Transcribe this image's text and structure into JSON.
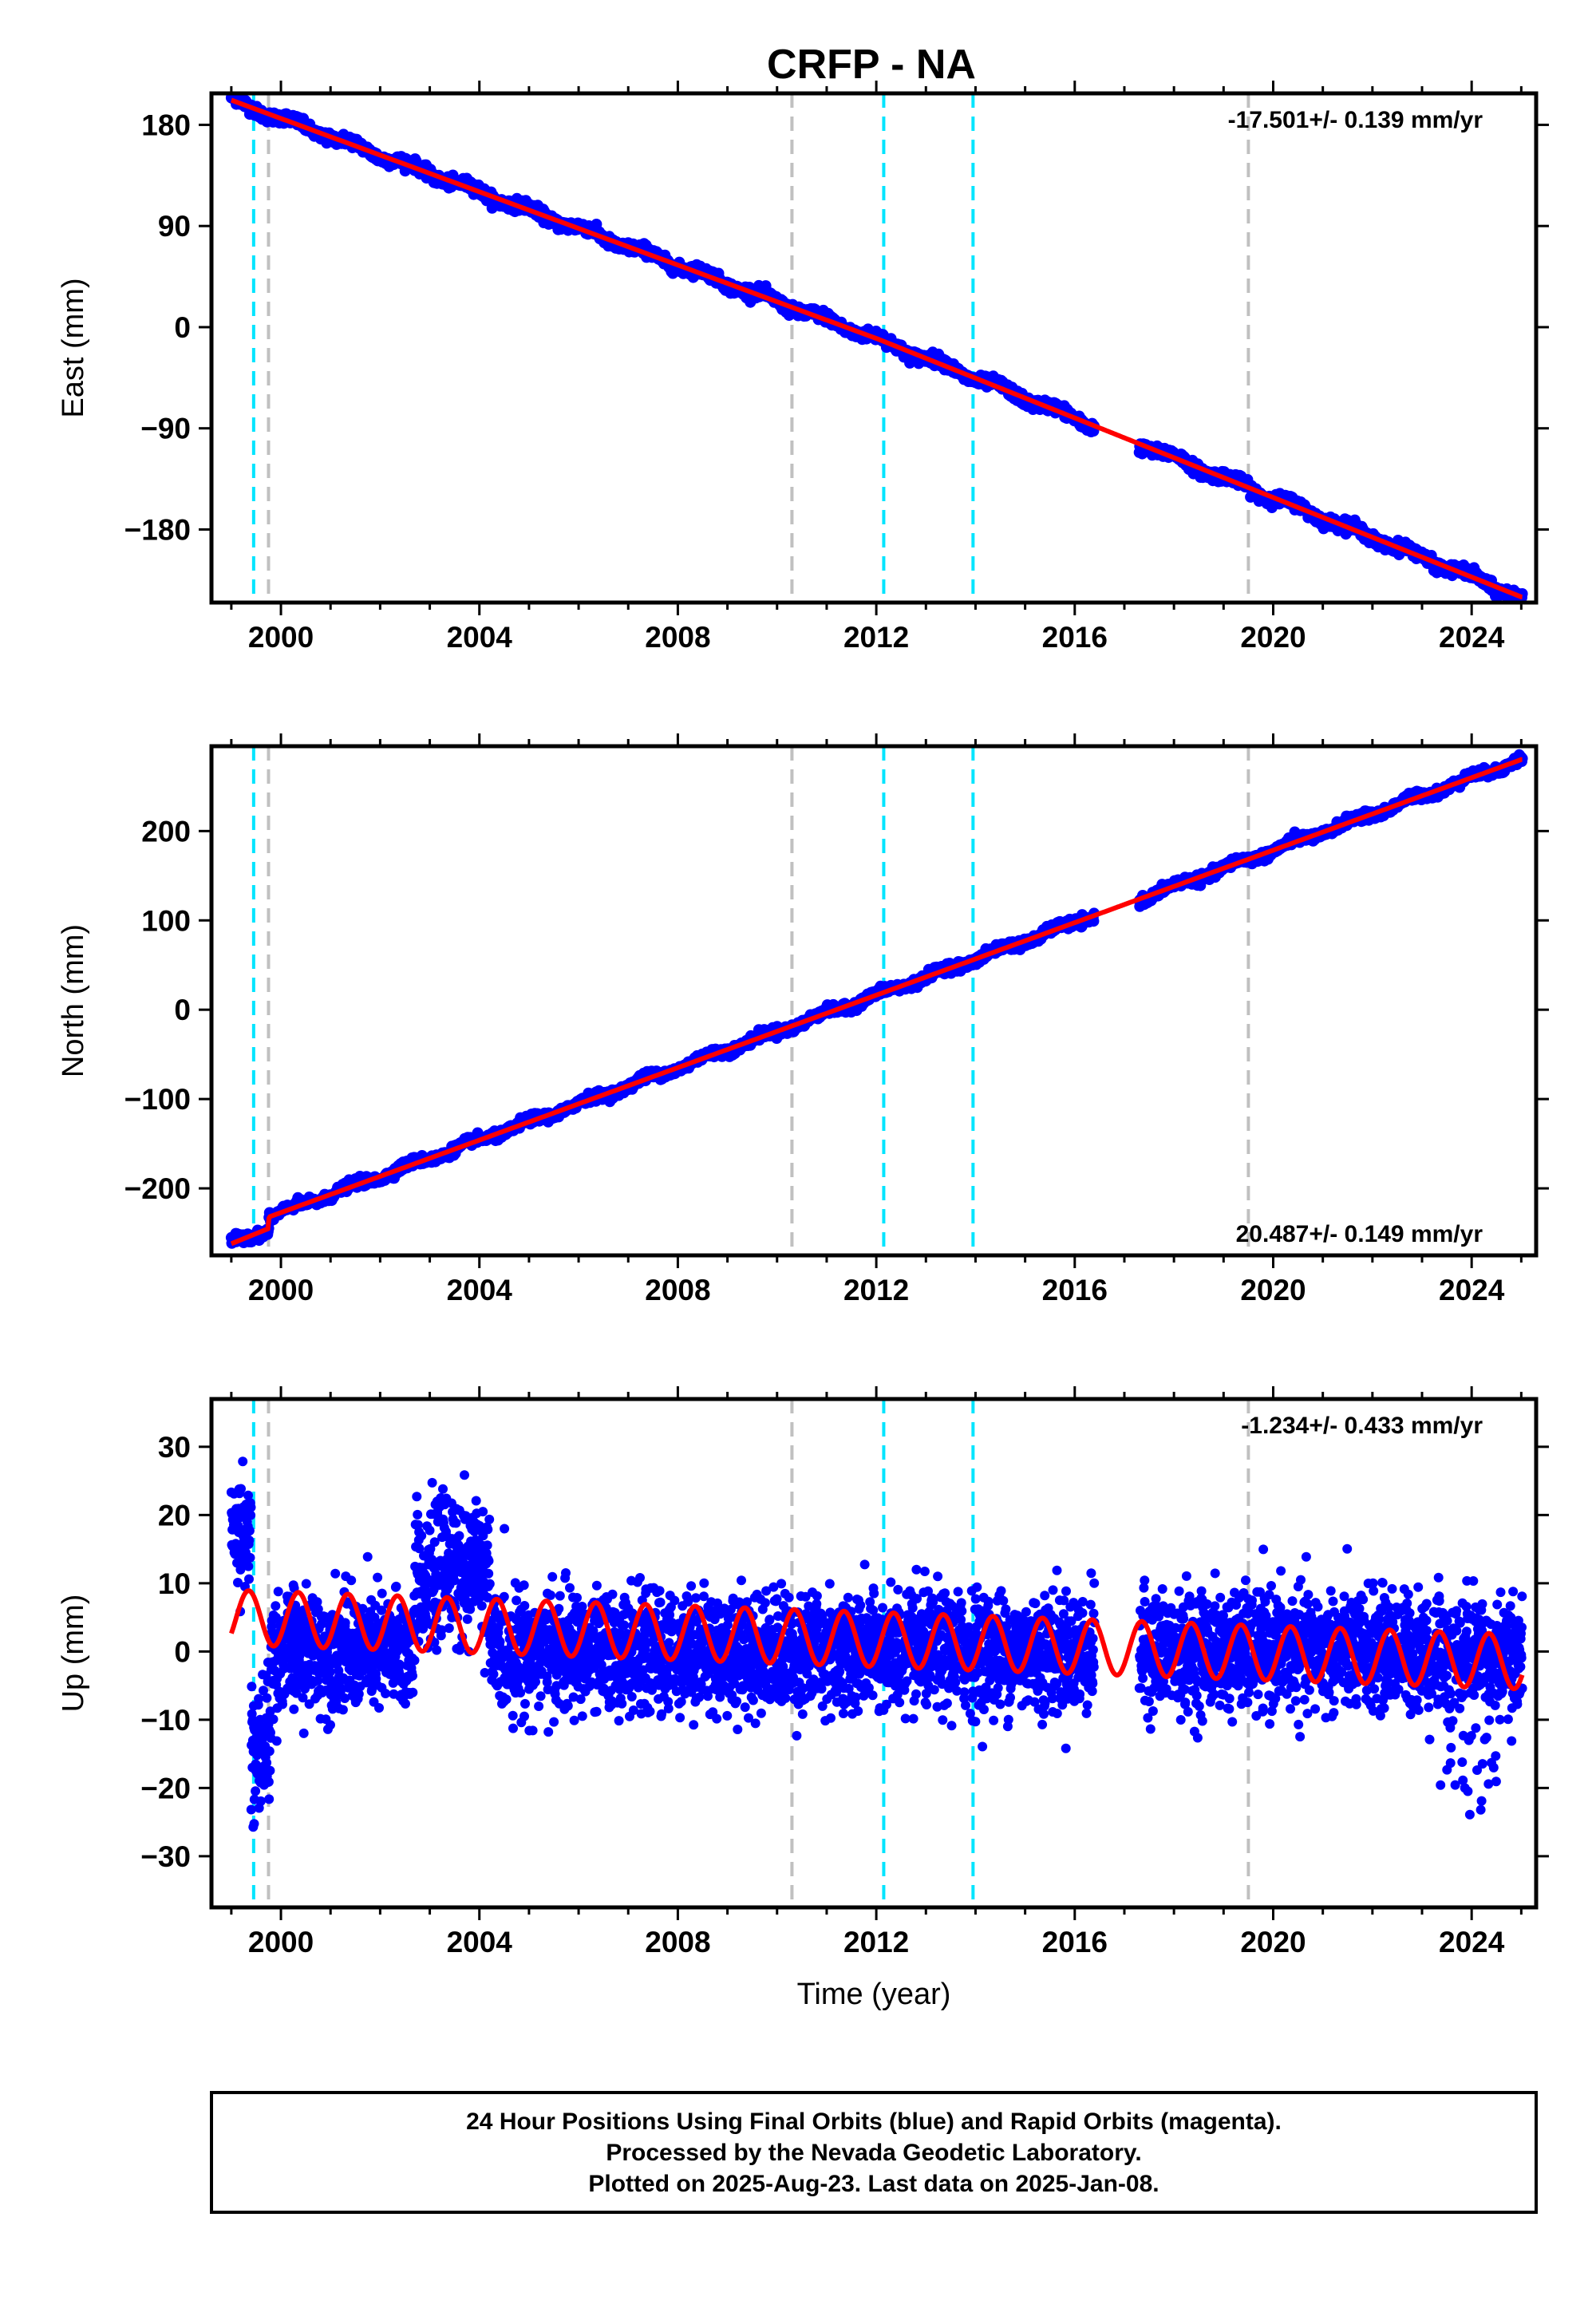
{
  "title": "CRFP - NA",
  "footer": {
    "line1": "24 Hour Positions Using Final Orbits (blue) and Rapid Orbits (magenta).",
    "line2": "Processed by the Nevada Geodetic Laboratory.",
    "line3": "Plotted on 2025-Aug-23. Last data on 2025-Jan-08."
  },
  "colors": {
    "data": "#0000ff",
    "model": "#ff0000",
    "equipment_change": "#00e5ff",
    "earthquake_event": "#c0c0c0",
    "frame": "#000000"
  },
  "chart_data": [
    {
      "type": "scatter",
      "component": "east",
      "xlabel": "",
      "ylabel": "East (mm)",
      "xlim": [
        1998.6,
        2025.3
      ],
      "ylim": [
        -245,
        208
      ],
      "xticks": [
        2000,
        2004,
        2008,
        2012,
        2016,
        2020,
        2024
      ],
      "xtick_labels": [
        "2000",
        "2004",
        "2008",
        "2012",
        "2016",
        "2020",
        "2024"
      ],
      "yticks": [
        -180,
        -90,
        0,
        90,
        180
      ],
      "ytick_labels": [
        "−180",
        "−90",
        "0",
        "90",
        "180"
      ],
      "rate_label": "-17.501+/- 0.139 mm/yr",
      "rate_position": "top-right",
      "data_span": [
        1999.0,
        2025.02
      ],
      "data_gap": [
        2016.4,
        2017.3
      ],
      "model_line": {
        "x": [
          1999.0,
          2012.0,
          2025.0
        ],
        "y": [
          202,
          -10,
          -240
        ]
      },
      "vertical_lines": {
        "equipment_change": [
          1999.45,
          2012.15,
          2013.95
        ],
        "earthquake_event": [
          1999.75,
          2010.3,
          2019.5
        ]
      }
    },
    {
      "type": "scatter",
      "component": "north",
      "xlabel": "",
      "ylabel": "North (mm)",
      "xlim": [
        1998.6,
        2025.3
      ],
      "ylim": [
        -275,
        295
      ],
      "xticks": [
        2000,
        2004,
        2008,
        2012,
        2016,
        2020,
        2024
      ],
      "xtick_labels": [
        "2000",
        "2004",
        "2008",
        "2012",
        "2016",
        "2020",
        "2024"
      ],
      "yticks": [
        -200,
        -100,
        0,
        100,
        200
      ],
      "ytick_labels": [
        "−200",
        "−100",
        "0",
        "100",
        "200"
      ],
      "rate_label": "20.487+/- 0.149 mm/yr",
      "rate_position": "bottom-right",
      "data_span": [
        1999.0,
        2025.02
      ],
      "data_gap": [
        2016.4,
        2017.3
      ],
      "model_line": {
        "x": [
          1999.0,
          1999.75,
          1999.76,
          2025.0
        ],
        "y": [
          -262,
          -245,
          -232,
          280
        ]
      },
      "vertical_lines": {
        "equipment_change": [
          1999.45,
          2012.15,
          2013.95
        ],
        "earthquake_event": [
          1999.75,
          2010.3,
          2019.5
        ]
      }
    },
    {
      "type": "scatter",
      "component": "up",
      "xlabel": "Time (year)",
      "ylabel": "Up (mm)",
      "xlim": [
        1998.6,
        2025.3
      ],
      "ylim": [
        -37.5,
        37
      ],
      "xticks": [
        2000,
        2004,
        2008,
        2012,
        2016,
        2020,
        2024
      ],
      "xtick_labels": [
        "2000",
        "2004",
        "2008",
        "2012",
        "2016",
        "2020",
        "2024"
      ],
      "yticks": [
        -30,
        -20,
        -10,
        0,
        10,
        20,
        30
      ],
      "ytick_labels": [
        "−30",
        "−20",
        "−10",
        "0",
        "10",
        "20",
        "30"
      ],
      "rate_label": "-1.234+/- 0.433 mm/yr",
      "rate_position": "top-right",
      "data_span": [
        1999.0,
        2025.02
      ],
      "data_gap": [
        2016.4,
        2017.3
      ],
      "model_line": {
        "x": [
          1999.0,
          2025.0
        ],
        "y": [
          5,
          -1.5
        ],
        "seasonal_amplitude": 4,
        "period_years": 1
      },
      "vertical_lines": {
        "equipment_change": [
          1999.45,
          2012.15,
          2013.95
        ],
        "earthquake_event": [
          1999.75,
          2010.3,
          2019.5
        ]
      }
    }
  ]
}
